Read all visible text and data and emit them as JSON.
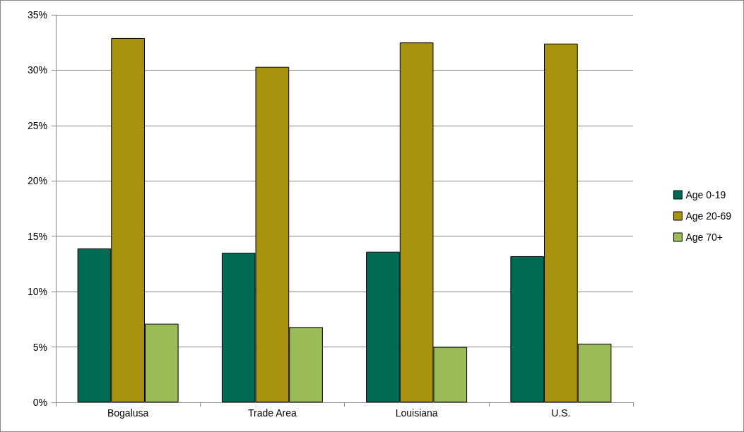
{
  "chart_data": {
    "type": "bar",
    "categories": [
      "Bogalusa",
      "Trade Area",
      "Louisiana",
      "U.S."
    ],
    "series": [
      {
        "name": "Age 0-19",
        "color": "#006b54",
        "values": [
          13.9,
          13.5,
          13.6,
          13.2
        ]
      },
      {
        "name": "Age 20-69",
        "color": "#a9930e",
        "values": [
          32.9,
          30.3,
          32.5,
          32.4
        ]
      },
      {
        "name": "Age 70+",
        "color": "#9bbb59",
        "values": [
          7.1,
          6.8,
          5.0,
          5.3
        ]
      }
    ],
    "ylim": [
      0,
      35
    ],
    "yticks": [
      {
        "value": 0,
        "label": "0%"
      },
      {
        "value": 5,
        "label": "5%"
      },
      {
        "value": 10,
        "label": "10%"
      },
      {
        "value": 15,
        "label": "15%"
      },
      {
        "value": 20,
        "label": "20%"
      },
      {
        "value": 25,
        "label": "25%"
      },
      {
        "value": 30,
        "label": "30%"
      },
      {
        "value": 35,
        "label": "35%"
      }
    ],
    "grid": "y",
    "legend": "right"
  }
}
